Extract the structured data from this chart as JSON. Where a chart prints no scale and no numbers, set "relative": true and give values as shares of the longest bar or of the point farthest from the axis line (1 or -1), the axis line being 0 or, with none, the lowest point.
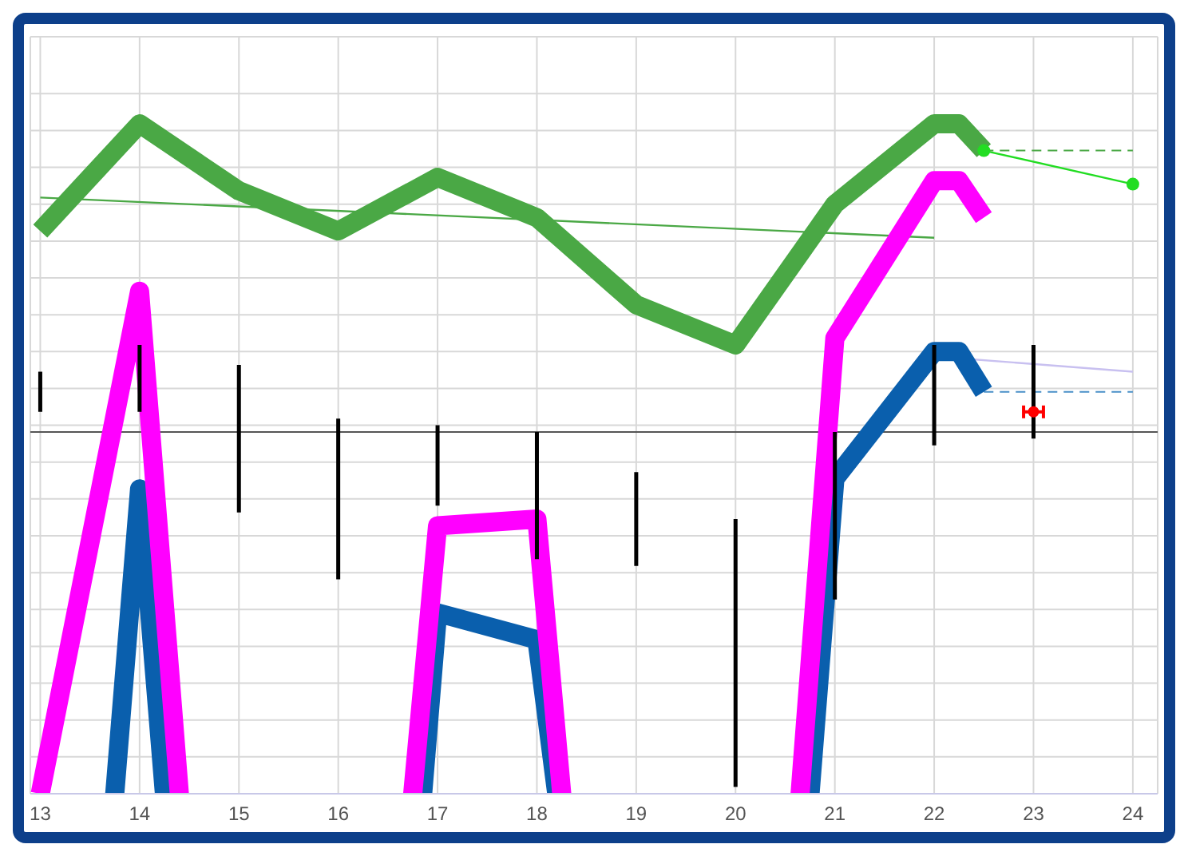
{
  "chart_data": {
    "type": "line",
    "relative": true,
    "xlim": [
      12.9,
      24.25
    ],
    "xticks": [
      13,
      14,
      15,
      16,
      17,
      18,
      19,
      20,
      21,
      22,
      23,
      24
    ],
    "grid": true,
    "marker": "none",
    "line_style": "solid",
    "ref_lines": [
      {
        "axis": "y",
        "value": 0.54,
        "color": "#555555"
      }
    ],
    "series": [
      {
        "color": "#4aa845",
        "x": [
          13,
          14,
          15,
          16,
          17,
          18,
          19,
          20,
          21,
          22,
          22.25,
          22.5
        ],
        "values": [
          0.84,
          1.0,
          0.9,
          0.84,
          0.92,
          0.86,
          0.73,
          0.67,
          0.88,
          1.0,
          1.0,
          0.96
        ]
      },
      {
        "color": "#ff00ff",
        "x": [
          13,
          14,
          14.4,
          15.5,
          16.75,
          17,
          18,
          18.25,
          19.5,
          20.65,
          21,
          22,
          22.25,
          22.5
        ],
        "values": [
          0,
          0.75,
          0,
          null,
          0,
          0.4,
          0.41,
          0,
          null,
          0,
          0.68,
          0.915,
          0.915,
          0.86
        ]
      },
      {
        "color": "#0a5fad",
        "x": [
          13.75,
          14,
          14.25,
          15.5,
          16.85,
          17,
          18,
          18.2,
          19.5,
          20.75,
          21,
          22,
          22.25,
          22.5
        ],
        "values": [
          0,
          0.455,
          0,
          null,
          0,
          0.27,
          0.23,
          0,
          null,
          0,
          0.47,
          0.66,
          0.66,
          0.6
        ]
      },
      {
        "color": "#4aa845",
        "x": [
          13,
          22
        ],
        "values": [
          0.89,
          0.83
        ]
      },
      {
        "color": "#4aa845",
        "x": [
          22.5,
          24
        ],
        "values": [
          0.96,
          0.96
        ],
        "line_style": "dashed"
      },
      {
        "color": "#22dd22",
        "x": [
          22.5,
          24
        ],
        "values": [
          0.96,
          0.91
        ],
        "marker": "circle"
      },
      {
        "color": "#4a90c8",
        "x": [
          22.5,
          24
        ],
        "values": [
          0.6,
          0.6
        ],
        "line_style": "dashed"
      },
      {
        "color": "#c8c0f0",
        "x": [
          22.25,
          24
        ],
        "values": [
          0.65,
          0.63
        ]
      },
      {
        "color": "#000000",
        "x": [
          13,
          13,
          null,
          14,
          14,
          null,
          15,
          15,
          null,
          16,
          16,
          null,
          17,
          17,
          null,
          18,
          18,
          null,
          19,
          19,
          null,
          20,
          20,
          null,
          21,
          21,
          null,
          22,
          22,
          null,
          23,
          23
        ],
        "values": [
          0.57,
          0.63,
          null,
          0.57,
          0.67,
          null,
          0.42,
          0.64,
          null,
          0.32,
          0.56,
          null,
          0.43,
          0.55,
          null,
          0.35,
          0.54,
          null,
          0.34,
          0.48,
          null,
          0.01,
          0.41,
          null,
          0.29,
          0.54,
          null,
          0.52,
          0.67,
          null,
          0.53,
          0.67
        ]
      },
      {
        "type": "scatter",
        "color": "#ff0000",
        "x": [
          23
        ],
        "values": [
          0.57
        ],
        "xerrors": [
          0.1
        ],
        "marker": "circle"
      }
    ]
  }
}
